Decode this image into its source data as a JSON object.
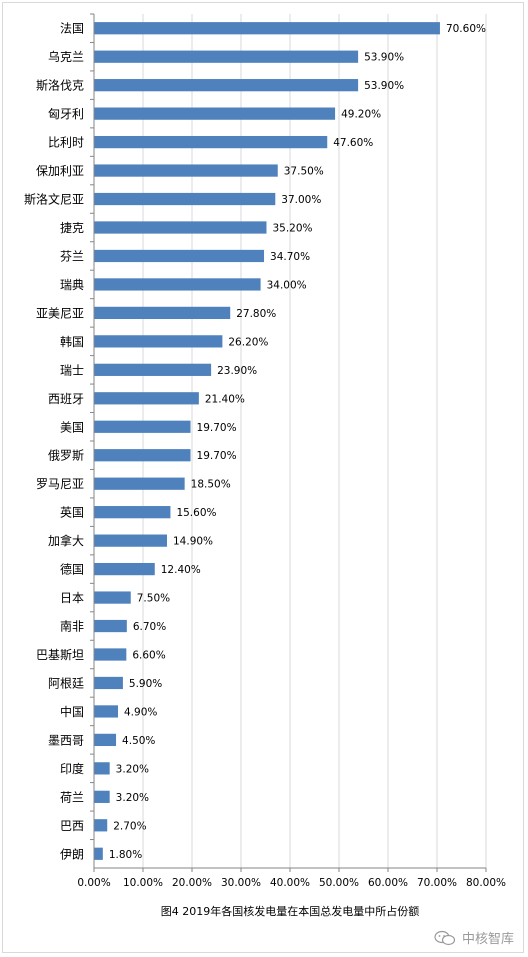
{
  "chart_data": {
    "type": "bar",
    "orientation": "horizontal",
    "categories": [
      "法国",
      "乌克兰",
      "斯洛伐克",
      "匈牙利",
      "比利时",
      "保加利亚",
      "斯洛文尼亚",
      "捷克",
      "芬兰",
      "瑞典",
      "亚美尼亚",
      "韩国",
      "瑞士",
      "西班牙",
      "美国",
      "俄罗斯",
      "罗马尼亚",
      "英国",
      "加拿大",
      "德国",
      "日本",
      "南非",
      "巴基斯坦",
      "阿根廷",
      "中国",
      "墨西哥",
      "印度",
      "荷兰",
      "巴西",
      "伊朗"
    ],
    "values": [
      70.6,
      53.9,
      53.9,
      49.2,
      47.6,
      37.5,
      37.0,
      35.2,
      34.7,
      34.0,
      27.8,
      26.2,
      23.9,
      21.4,
      19.7,
      19.7,
      18.5,
      15.6,
      14.9,
      12.4,
      7.5,
      6.7,
      6.6,
      5.9,
      4.9,
      4.5,
      3.2,
      3.2,
      2.7,
      1.8
    ],
    "value_labels": [
      "70.60%",
      "53.90%",
      "53.90%",
      "49.20%",
      "47.60%",
      "37.50%",
      "37.00%",
      "35.20%",
      "34.70%",
      "34.00%",
      "27.80%",
      "26.20%",
      "23.90%",
      "21.40%",
      "19.70%",
      "19.70%",
      "18.50%",
      "15.60%",
      "14.90%",
      "12.40%",
      "7.50%",
      "6.70%",
      "6.60%",
      "5.90%",
      "4.90%",
      "4.50%",
      "3.20%",
      "3.20%",
      "2.70%",
      "1.80%"
    ],
    "x_ticks": [
      "0.00%",
      "10.00%",
      "20.00%",
      "30.00%",
      "40.00%",
      "50.00%",
      "60.00%",
      "70.00%",
      "80.00%"
    ],
    "xlim": [
      0,
      80
    ],
    "xlabel": "图4 2019年各国核发电量在本国总发电量中所占份额",
    "ylabel": "",
    "grid": "vertical major gridlines",
    "legend": "none",
    "bar_color": "#4f81bd",
    "grid_color": "#d9d9d9"
  },
  "watermark": {
    "text": "中核智库",
    "icon": "wechat-icon"
  }
}
